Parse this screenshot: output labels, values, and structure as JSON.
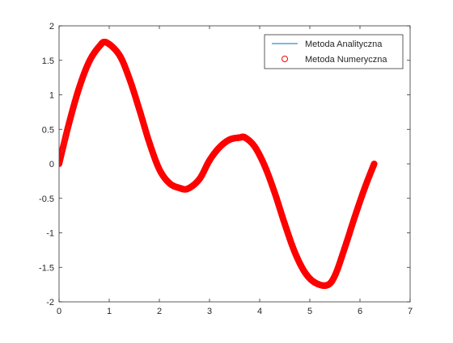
{
  "chart_data": {
    "type": "line",
    "title": "",
    "xlabel": "",
    "ylabel": "",
    "xlim": [
      0,
      7
    ],
    "ylim": [
      -2,
      2
    ],
    "xticks": [
      "0",
      "1",
      "2",
      "3",
      "4",
      "5",
      "6",
      "7"
    ],
    "yticks": [
      "-2",
      "-1.5",
      "-1",
      "-0.5",
      "0",
      "0.5",
      "1",
      "1.5",
      "2"
    ],
    "grid": false,
    "legend_position": "top-right",
    "x_range": [
      0,
      6.2832
    ],
    "series": [
      {
        "name": "Metoda Analityczna",
        "style": "line",
        "color": "#0072BD",
        "x": [
          0,
          0.2,
          0.4,
          0.6,
          0.8,
          0.94,
          1.2,
          1.4,
          1.6,
          1.8,
          2.0,
          2.2,
          2.4,
          2.57,
          2.8,
          3.0,
          3.2,
          3.4,
          3.6,
          3.71,
          3.9,
          4.1,
          4.3,
          4.5,
          4.7,
          4.9,
          5.1,
          5.34,
          5.5,
          5.7,
          5.9,
          6.1,
          6.2832
        ],
        "y": [
          0,
          0.59,
          1.1,
          1.48,
          1.7,
          1.76,
          1.58,
          1.24,
          0.79,
          0.31,
          -0.08,
          -0.28,
          -0.35,
          -0.36,
          -0.22,
          0.05,
          0.24,
          0.35,
          0.38,
          0.38,
          0.25,
          -0.03,
          -0.42,
          -0.87,
          -1.28,
          -1.57,
          -1.72,
          -1.76,
          -1.62,
          -1.21,
          -0.76,
          -0.34,
          0
        ]
      },
      {
        "name": "Metoda Numeryczna",
        "style": "circles",
        "color": "#FF0000",
        "x": [
          0,
          0.2,
          0.4,
          0.6,
          0.8,
          0.94,
          1.2,
          1.4,
          1.6,
          1.8,
          2.0,
          2.2,
          2.4,
          2.57,
          2.8,
          3.0,
          3.2,
          3.4,
          3.6,
          3.71,
          3.9,
          4.1,
          4.3,
          4.5,
          4.7,
          4.9,
          5.1,
          5.34,
          5.5,
          5.7,
          5.9,
          6.1,
          6.2832
        ],
        "y": [
          0,
          0.59,
          1.1,
          1.48,
          1.7,
          1.76,
          1.58,
          1.24,
          0.79,
          0.31,
          -0.08,
          -0.28,
          -0.35,
          -0.36,
          -0.22,
          0.05,
          0.24,
          0.35,
          0.38,
          0.38,
          0.25,
          -0.03,
          -0.42,
          -0.87,
          -1.28,
          -1.57,
          -1.72,
          -1.76,
          -1.62,
          -1.21,
          -0.76,
          -0.34,
          0
        ]
      }
    ]
  }
}
